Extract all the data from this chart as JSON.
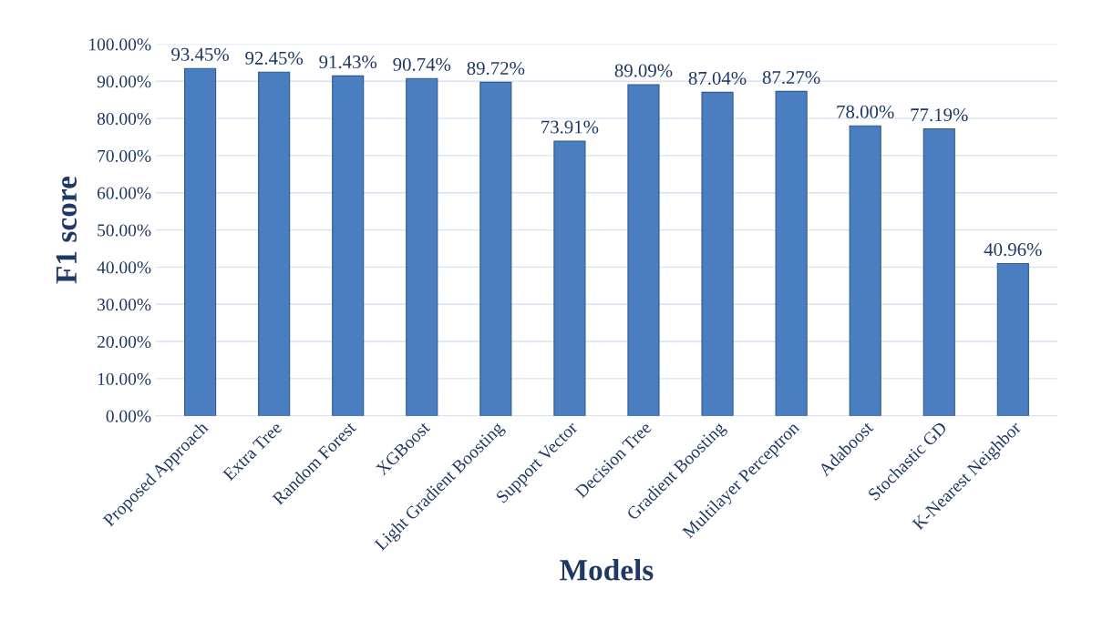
{
  "chart_data": {
    "type": "bar",
    "xlabel": "Models",
    "ylabel": "F1 score",
    "categories": [
      "Proposed Approach",
      "Extra Tree",
      "Random Forest",
      "XGBoost",
      "Light Gradient Boosting",
      "Support Vector",
      "Decision Tree",
      "Gradient Boosting",
      "Multilayer Perceptron",
      "Adaboost",
      "Stochastic GD",
      "K-Nearest Neighbor"
    ],
    "values": [
      93.45,
      92.45,
      91.43,
      90.74,
      89.72,
      73.91,
      89.09,
      87.04,
      87.27,
      78.0,
      77.19,
      40.96
    ],
    "value_labels": [
      "93.45%",
      "92.45%",
      "91.43%",
      "90.74%",
      "89.72%",
      "73.91%",
      "89.09%",
      "87.04%",
      "87.27%",
      "78.00%",
      "77.19%",
      "40.96%"
    ],
    "color": "#4a7ec0",
    "ylim": [
      0,
      100
    ],
    "yticks": [
      {
        "value": 0,
        "label": "0.00%"
      },
      {
        "value": 10,
        "label": "10.00%"
      },
      {
        "value": 20,
        "label": "20.00%"
      },
      {
        "value": 30,
        "label": "30.00%"
      },
      {
        "value": 40,
        "label": "40.00%"
      },
      {
        "value": 50,
        "label": "50.00%"
      },
      {
        "value": 60,
        "label": "60.00%"
      },
      {
        "value": 70,
        "label": "70.00%"
      },
      {
        "value": 80,
        "label": "80.00%"
      },
      {
        "value": 90,
        "label": "90.00%"
      },
      {
        "value": 100,
        "label": "100.00%"
      }
    ],
    "grid": "y"
  }
}
